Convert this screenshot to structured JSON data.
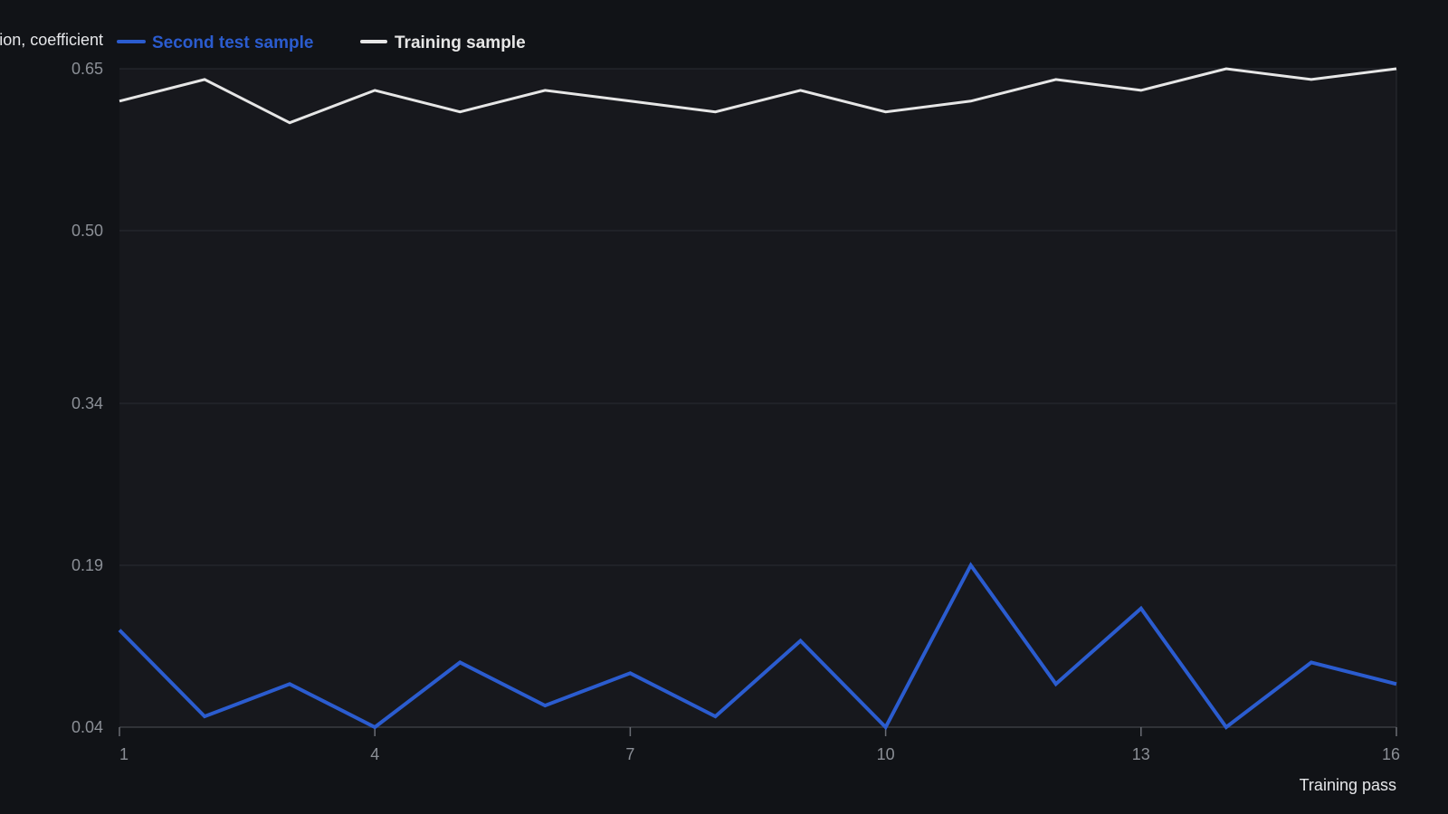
{
  "chart_data": {
    "type": "line",
    "xlabel": "Training pass",
    "ylabel": "Recognition, coefficient",
    "x": [
      1,
      2,
      3,
      4,
      5,
      6,
      7,
      8,
      9,
      10,
      11,
      12,
      13,
      14,
      15,
      16
    ],
    "x_ticks": [
      1,
      4,
      7,
      10,
      13,
      16
    ],
    "y_ticks": [
      0.04,
      0.19,
      0.34,
      0.5,
      0.65
    ],
    "y_tick_labels": [
      "0.04",
      "0.19",
      "0.34",
      "0.50",
      "0.65"
    ],
    "xlim": [
      1,
      16
    ],
    "ylim": [
      0.04,
      0.65
    ],
    "grid": true,
    "legend_position": "top-left",
    "series": [
      {
        "name": "Second test sample",
        "color": "#2b5ccf",
        "values": [
          0.13,
          0.05,
          0.08,
          0.04,
          0.1,
          0.06,
          0.09,
          0.05,
          0.12,
          0.04,
          0.19,
          0.08,
          0.15,
          0.04,
          0.1,
          0.08
        ]
      },
      {
        "name": "Training sample",
        "color": "#e6e6e6",
        "values": [
          0.62,
          0.64,
          0.6,
          0.63,
          0.61,
          0.63,
          0.62,
          0.61,
          0.63,
          0.61,
          0.62,
          0.64,
          0.63,
          0.65,
          0.64,
          0.65
        ]
      }
    ]
  }
}
